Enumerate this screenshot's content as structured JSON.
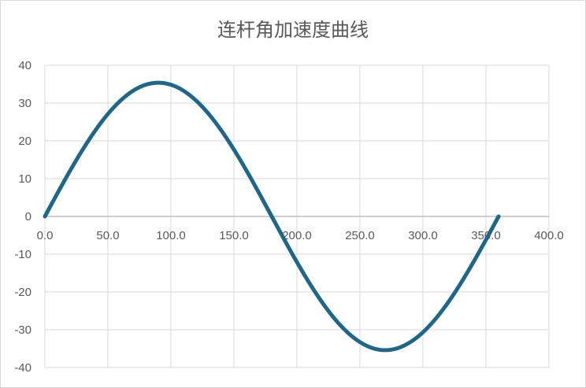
{
  "chart_data": {
    "type": "line",
    "title": "连杆角加速度曲线",
    "xlabel": "",
    "ylabel": "",
    "xlim": [
      0,
      400
    ],
    "ylim": [
      -40,
      40
    ],
    "x_ticks": [
      "0.0",
      "50.0",
      "100.0",
      "150.0",
      "200.0",
      "250.0",
      "300.0",
      "350.0",
      "400.0"
    ],
    "y_ticks": [
      "40",
      "30",
      "20",
      "10",
      "0",
      "-10",
      "-20",
      "-30",
      "-40"
    ],
    "grid": true,
    "line_color": "#1f6788",
    "series": [
      {
        "x": [
          0,
          10,
          20,
          30,
          40,
          50,
          60,
          70,
          80,
          90,
          100,
          110,
          120,
          130,
          140,
          150,
          160,
          170,
          180,
          190,
          200,
          210,
          220,
          230,
          240,
          250,
          260,
          270,
          280,
          290,
          300,
          310,
          320,
          330,
          340,
          350,
          360
        ],
        "y": [
          0,
          6.15,
          12.11,
          17.7,
          22.75,
          27.12,
          30.66,
          33.27,
          34.86,
          35.4,
          34.86,
          33.27,
          30.66,
          27.12,
          22.75,
          17.7,
          12.11,
          6.15,
          0,
          -6.15,
          -12.11,
          -17.7,
          -22.75,
          -27.12,
          -30.66,
          -33.27,
          -34.86,
          -35.4,
          -34.86,
          -33.27,
          -30.66,
          -27.12,
          -22.75,
          -17.7,
          -12.11,
          -6.15,
          0
        ]
      }
    ]
  }
}
